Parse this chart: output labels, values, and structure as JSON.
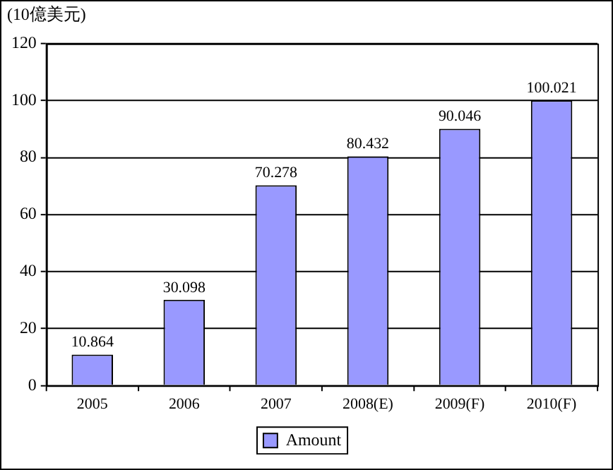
{
  "chart_data": {
    "type": "bar",
    "ylabel": "(10億美元)",
    "categories": [
      "2005",
      "2006",
      "2007",
      "2008(E)",
      "2009(F)",
      "2010(F)"
    ],
    "series": [
      {
        "name": "Amount",
        "color": "#9999ff",
        "values": [
          10.864,
          30.098,
          70.278,
          80.432,
          90.046,
          100.021
        ]
      }
    ],
    "ylim": [
      0,
      120
    ],
    "yticks": [
      0,
      20,
      40,
      60,
      80,
      100,
      120
    ],
    "grid": "y",
    "legend": "bottom",
    "data_labels": true
  }
}
